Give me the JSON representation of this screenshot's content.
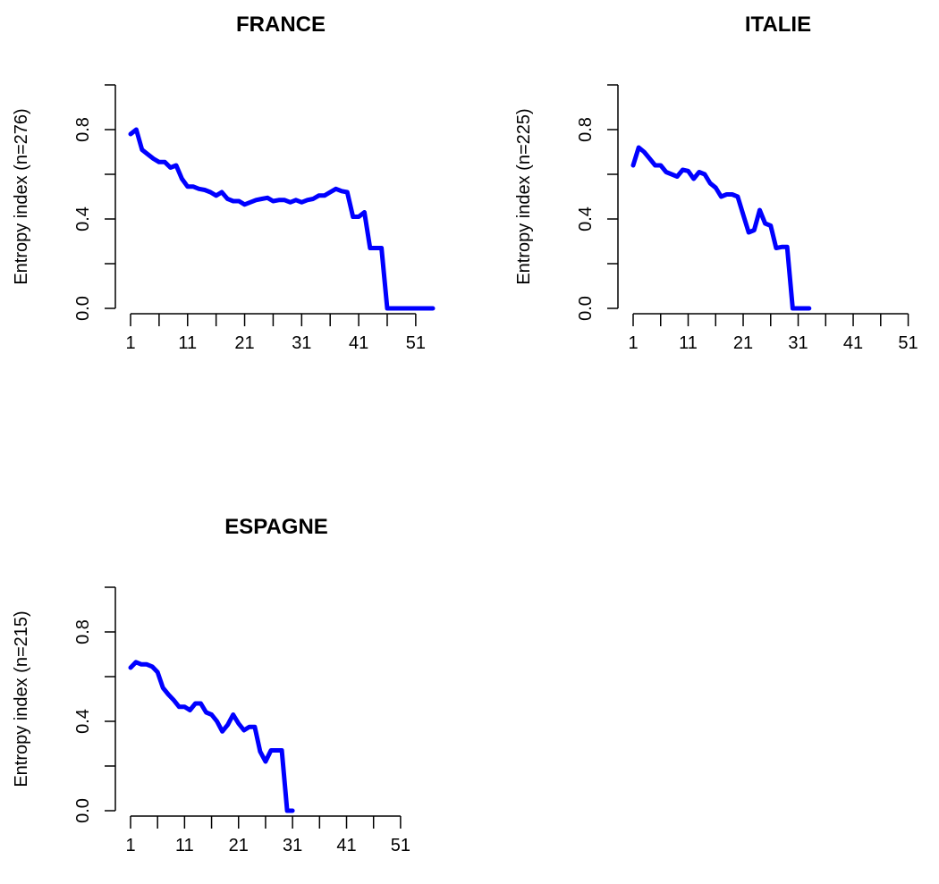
{
  "charts": [
    {
      "type": "line",
      "title": "FRANCE",
      "ylabel": "Entropy index (n=276)",
      "xlabel": "",
      "ylim": [
        0,
        1
      ],
      "xlim": [
        1,
        54
      ],
      "yticks": [
        0.0,
        0.4,
        0.8
      ],
      "ytick_labels": [
        "0.0",
        "0.4",
        "0.8"
      ],
      "xticks": [
        1,
        6,
        11,
        16,
        21,
        26,
        31,
        36,
        41,
        46,
        51
      ],
      "xtick_labels": [
        "1",
        "11",
        "21",
        "31",
        "41",
        "51"
      ],
      "xtick_label_positions": [
        1,
        11,
        21,
        31,
        41,
        51
      ],
      "line_color": "#0000ff",
      "series": [
        {
          "x": [
            1,
            2,
            3,
            4,
            5,
            6,
            7,
            8,
            9,
            10,
            11,
            12,
            13,
            14,
            15,
            16,
            17,
            18,
            19,
            20,
            21,
            22,
            23,
            24,
            25,
            26,
            27,
            28,
            29,
            30,
            31,
            32,
            33,
            34,
            35,
            36,
            37,
            38,
            39,
            40,
            41,
            42,
            43,
            44,
            45,
            46,
            47,
            48,
            49,
            50,
            51,
            52,
            53,
            54
          ],
          "y": [
            0.78,
            0.8,
            0.71,
            0.69,
            0.67,
            0.655,
            0.655,
            0.63,
            0.64,
            0.58,
            0.545,
            0.545,
            0.535,
            0.53,
            0.52,
            0.505,
            0.52,
            0.49,
            0.48,
            0.48,
            0.465,
            0.475,
            0.485,
            0.49,
            0.495,
            0.48,
            0.485,
            0.485,
            0.475,
            0.485,
            0.475,
            0.485,
            0.49,
            0.505,
            0.505,
            0.52,
            0.535,
            0.525,
            0.52,
            0.41,
            0.41,
            0.43,
            0.27,
            0.27,
            0.27,
            0.0,
            0.0,
            0.0,
            0.0,
            0.0,
            0.0,
            0.0,
            0.0,
            0.0
          ]
        }
      ]
    },
    {
      "type": "line",
      "title": "ITALIE",
      "ylabel": "Entropy index (n=225)",
      "xlabel": "",
      "ylim": [
        0,
        1
      ],
      "xlim": [
        1,
        54
      ],
      "yticks": [
        0.0,
        0.4,
        0.8
      ],
      "ytick_labels": [
        "0.0",
        "0.4",
        "0.8"
      ],
      "xticks": [
        1,
        6,
        11,
        16,
        21,
        26,
        31,
        36,
        41,
        46,
        51
      ],
      "xtick_labels": [
        "1",
        "11",
        "21",
        "31",
        "41",
        "51"
      ],
      "xtick_label_positions": [
        1,
        11,
        21,
        31,
        41,
        51
      ],
      "line_color": "#0000ff",
      "series": [
        {
          "x": [
            1,
            2,
            3,
            4,
            5,
            6,
            7,
            8,
            9,
            10,
            11,
            12,
            13,
            14,
            15,
            16,
            17,
            18,
            19,
            20,
            21,
            22,
            23,
            24,
            25,
            26,
            27,
            28,
            29,
            30,
            31,
            32,
            33
          ],
          "y": [
            0.64,
            0.72,
            0.7,
            0.67,
            0.64,
            0.64,
            0.61,
            0.6,
            0.59,
            0.62,
            0.615,
            0.58,
            0.61,
            0.6,
            0.56,
            0.54,
            0.5,
            0.51,
            0.51,
            0.5,
            0.42,
            0.34,
            0.35,
            0.44,
            0.38,
            0.37,
            0.27,
            0.275,
            0.275,
            0.0,
            0.0,
            0.0,
            0.0
          ]
        }
      ]
    },
    {
      "type": "line",
      "title": "ESPAGNE",
      "ylabel": "Entropy index (n=215)",
      "xlabel": "",
      "ylim": [
        0,
        1
      ],
      "xlim": [
        1,
        54
      ],
      "yticks": [
        0.0,
        0.4,
        0.8
      ],
      "ytick_labels": [
        "0.0",
        "0.4",
        "0.8"
      ],
      "xticks": [
        1,
        6,
        11,
        16,
        21,
        26,
        31,
        36,
        41,
        46,
        51
      ],
      "xtick_labels": [
        "1",
        "11",
        "21",
        "31",
        "41",
        "51"
      ],
      "xtick_label_positions": [
        1,
        11,
        21,
        31,
        41,
        51
      ],
      "line_color": "#0000ff",
      "series": [
        {
          "x": [
            1,
            2,
            3,
            4,
            5,
            6,
            7,
            8,
            9,
            10,
            11,
            12,
            13,
            14,
            15,
            16,
            17,
            18,
            19,
            20,
            21,
            22,
            23,
            24,
            25,
            26,
            27,
            28,
            29,
            30,
            31
          ],
          "y": [
            0.64,
            0.665,
            0.655,
            0.655,
            0.645,
            0.62,
            0.55,
            0.52,
            0.495,
            0.465,
            0.465,
            0.45,
            0.48,
            0.48,
            0.44,
            0.43,
            0.4,
            0.355,
            0.385,
            0.43,
            0.39,
            0.36,
            0.375,
            0.375,
            0.265,
            0.22,
            0.27,
            0.27,
            0.27,
            0.0,
            0.0
          ]
        }
      ]
    }
  ]
}
